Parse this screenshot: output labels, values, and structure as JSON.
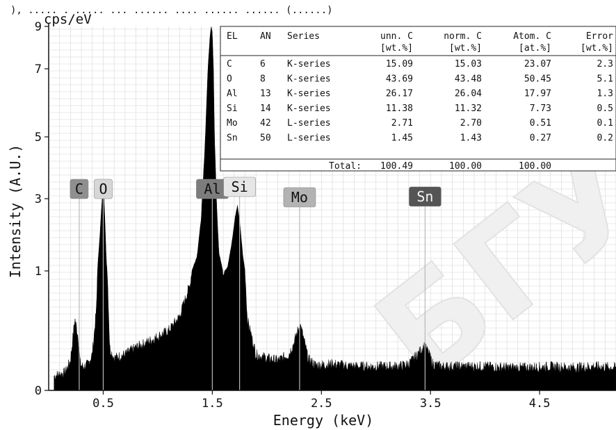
{
  "chart_data": {
    "type": "line",
    "title": "",
    "xlabel": "Energy (keV)",
    "ylabel": "Intensity (A.U.)",
    "unit_label": "cps/eV",
    "xlim": [
      0.0,
      5.2
    ],
    "ylim": [
      0,
      9
    ],
    "x_ticks": [
      0.5,
      1.5,
      2.5,
      3.5,
      4.5
    ],
    "x_tick_labels": [
      "0.5",
      "1.5",
      "2.5",
      "3.5",
      "4.5"
    ],
    "y_ticks": [
      0,
      1,
      3,
      5,
      7,
      9
    ],
    "y_tick_labels": [
      "0",
      "1",
      "3",
      "5",
      "7",
      "9"
    ],
    "grid": true,
    "series": [
      {
        "name": "",
        "x": [
          0.05,
          0.15,
          0.2,
          0.24,
          0.27,
          0.29,
          0.31,
          0.33,
          0.36,
          0.4,
          0.44,
          0.47,
          0.49,
          0.5,
          0.51,
          0.53,
          0.56,
          0.6,
          0.7,
          0.8,
          0.9,
          1.0,
          1.1,
          1.2,
          1.3,
          1.36,
          1.4,
          1.43,
          1.46,
          1.48,
          1.49,
          1.5,
          1.51,
          1.52,
          1.54,
          1.56,
          1.6,
          1.64,
          1.68,
          1.71,
          1.73,
          1.75,
          1.78,
          1.82,
          1.9,
          2.0,
          2.1,
          2.2,
          2.25,
          2.29,
          2.31,
          2.34,
          2.38,
          2.45,
          2.6,
          2.8,
          3.0,
          3.2,
          3.3,
          3.38,
          3.44,
          3.48,
          3.52,
          3.6,
          3.8,
          4.0,
          4.2,
          4.4,
          4.6,
          4.8,
          5.0,
          5.2
        ],
        "y": [
          0.12,
          0.15,
          0.25,
          0.6,
          0.45,
          0.22,
          0.2,
          0.2,
          0.22,
          0.3,
          0.7,
          2.0,
          3.0,
          3.45,
          2.8,
          1.2,
          0.35,
          0.27,
          0.3,
          0.36,
          0.4,
          0.45,
          0.5,
          0.62,
          0.9,
          1.4,
          2.5,
          4.5,
          7.0,
          8.6,
          9.0,
          8.7,
          7.0,
          5.0,
          2.8,
          1.5,
          0.95,
          1.1,
          1.8,
          2.5,
          2.8,
          2.4,
          1.4,
          0.6,
          0.3,
          0.27,
          0.25,
          0.3,
          0.4,
          0.52,
          0.54,
          0.42,
          0.26,
          0.21,
          0.22,
          0.2,
          0.2,
          0.2,
          0.22,
          0.3,
          0.37,
          0.32,
          0.22,
          0.2,
          0.2,
          0.2,
          0.19,
          0.19,
          0.2,
          0.19,
          0.2,
          0.19
        ]
      }
    ],
    "peak_labels": [
      {
        "label": "C",
        "energy": 0.28,
        "color": "#8f8f8f",
        "text_color": "#111111"
      },
      {
        "label": "O",
        "energy": 0.5,
        "color": "#d7d7d7",
        "text_color": "#111111"
      },
      {
        "label": "Al",
        "energy": 1.5,
        "color": "#7c7c7c",
        "text_color": "#111111"
      },
      {
        "label": "Si",
        "energy": 1.75,
        "color": "#e6e6e6",
        "text_color": "#111111"
      },
      {
        "label": "Mo",
        "energy": 2.3,
        "color": "#b3b3b3",
        "text_color": "#111111"
      },
      {
        "label": "Sn",
        "energy": 3.45,
        "color": "#555555",
        "text_color": "#f5f5f5"
      }
    ],
    "table": {
      "columns": [
        {
          "header": "EL",
          "unit": ""
        },
        {
          "header": "AN",
          "unit": ""
        },
        {
          "header": "Series",
          "unit": ""
        },
        {
          "header": "unn. C",
          "unit": "[wt.%]"
        },
        {
          "header": "norm. C",
          "unit": "[wt.%]"
        },
        {
          "header": "Atom. C",
          "unit": "[at.%]"
        },
        {
          "header": "Error",
          "unit": "[wt.%]"
        }
      ],
      "rows": [
        [
          "C",
          "6",
          "K-series",
          "15.09",
          "15.03",
          "23.07",
          "2.3"
        ],
        [
          "O",
          "8",
          "K-series",
          "43.69",
          "43.48",
          "50.45",
          "5.1"
        ],
        [
          "Al",
          "13",
          "K-series",
          "26.17",
          "26.04",
          "17.97",
          "1.3"
        ],
        [
          "Si",
          "14",
          "K-series",
          "11.38",
          "11.32",
          "7.73",
          "0.5"
        ],
        [
          "Mo",
          "42",
          "L-series",
          "2.71",
          "2.70",
          "0.51",
          "0.1"
        ],
        [
          "Sn",
          "50",
          "L-series",
          "1.45",
          "1.43",
          "0.27",
          "0.2"
        ]
      ],
      "total_label": "Total:",
      "totals": [
        "100.49",
        "100.00",
        "100.00"
      ]
    },
    "watermark": "БГУИ"
  },
  "colors": {
    "fill": "#000000",
    "grid": "#d6d6d6",
    "axis": "#111111",
    "watermark": "#f0f0f0"
  }
}
